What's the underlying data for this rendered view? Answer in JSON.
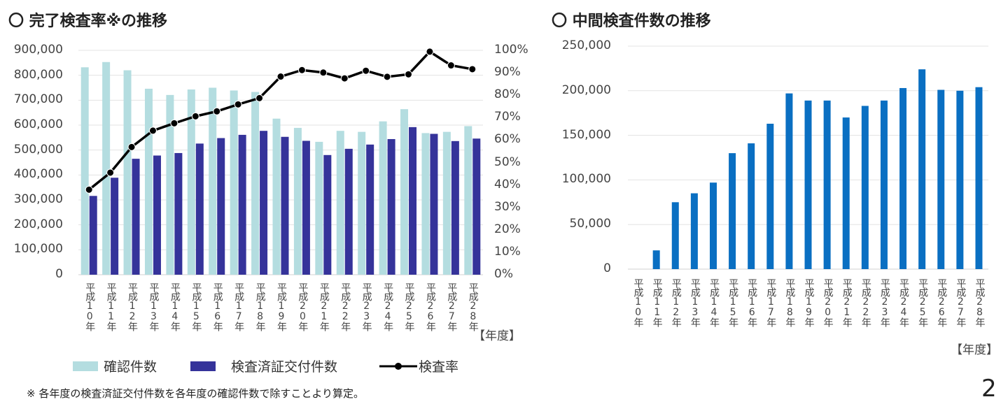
{
  "chart_data": [
    {
      "type": "bar+line",
      "title": "〇 完了検査率※の推移",
      "xunit": "【年度】",
      "categories": [
        "平成10年",
        "平成11年",
        "平成12年",
        "平成13年",
        "平成14年",
        "平成15年",
        "平成16年",
        "平成17年",
        "平成18年",
        "平成19年",
        "平成20年",
        "平成21年",
        "平成22年",
        "平成23年",
        "平成24年",
        "平成25年",
        "平成26年",
        "平成27年",
        "平成28年"
      ],
      "ylim": [
        0,
        900000
      ],
      "y2lim": [
        0,
        1
      ],
      "yticks": [
        "0",
        "100,000",
        "200,000",
        "300,000",
        "400,000",
        "500,000",
        "600,000",
        "700,000",
        "800,000",
        "900,000"
      ],
      "y2ticks": [
        "0%",
        "10%",
        "20%",
        "30%",
        "40%",
        "50%",
        "60%",
        "70%",
        "80%",
        "90%",
        "100%"
      ],
      "grid": true,
      "legend": "bottom",
      "series": [
        {
          "name": "確認件数",
          "type": "bar",
          "color": "#b4dde0",
          "values": [
            832000,
            853000,
            820000,
            746000,
            721000,
            743000,
            750000,
            739000,
            733000,
            626000,
            589000,
            533000,
            577000,
            573000,
            615000,
            664000,
            568000,
            573000,
            596000
          ]
        },
        {
          "name": "検査済証交付件数",
          "type": "bar",
          "color": "#35339a",
          "values": [
            316000,
            389000,
            465000,
            478000,
            488000,
            526000,
            548000,
            561000,
            577000,
            553000,
            537000,
            480000,
            505000,
            522000,
            544000,
            592000,
            565000,
            536000,
            546000
          ]
        },
        {
          "name": "検査率",
          "type": "line",
          "axis": "right",
          "color": "#000000",
          "values": [
            0.379,
            0.455,
            0.569,
            0.642,
            0.675,
            0.706,
            0.728,
            0.759,
            0.787,
            0.883,
            0.912,
            0.901,
            0.875,
            0.909,
            0.882,
            0.893,
            0.994,
            0.933,
            0.916
          ]
        }
      ]
    },
    {
      "type": "bar",
      "title": "〇 中間検査件数の推移",
      "xunit": "【年度】",
      "categories": [
        "平成10年",
        "平成11年",
        "平成12年",
        "平成13年",
        "平成14年",
        "平成15年",
        "平成16年",
        "平成17年",
        "平成18年",
        "平成19年",
        "平成20年",
        "平成21年",
        "平成22年",
        "平成23年",
        "平成24年",
        "平成25年",
        "平成26年",
        "平成27年",
        "平成28年"
      ],
      "ylim": [
        0,
        250000
      ],
      "yticks": [
        "0",
        "50,000",
        "100,000",
        "150,000",
        "200,000",
        "250,000"
      ],
      "grid": true,
      "series": [
        {
          "color": "#0a6fc2",
          "values": [
            0,
            21000,
            75000,
            85000,
            97000,
            130000,
            141000,
            163000,
            197000,
            189000,
            189000,
            170000,
            183000,
            189000,
            203000,
            224000,
            201000,
            200000,
            204000
          ]
        }
      ]
    }
  ],
  "footnote": "※ 各年度の検査済証交付件数を各年度の確認件数で除すことより算定。",
  "page_number": "2"
}
